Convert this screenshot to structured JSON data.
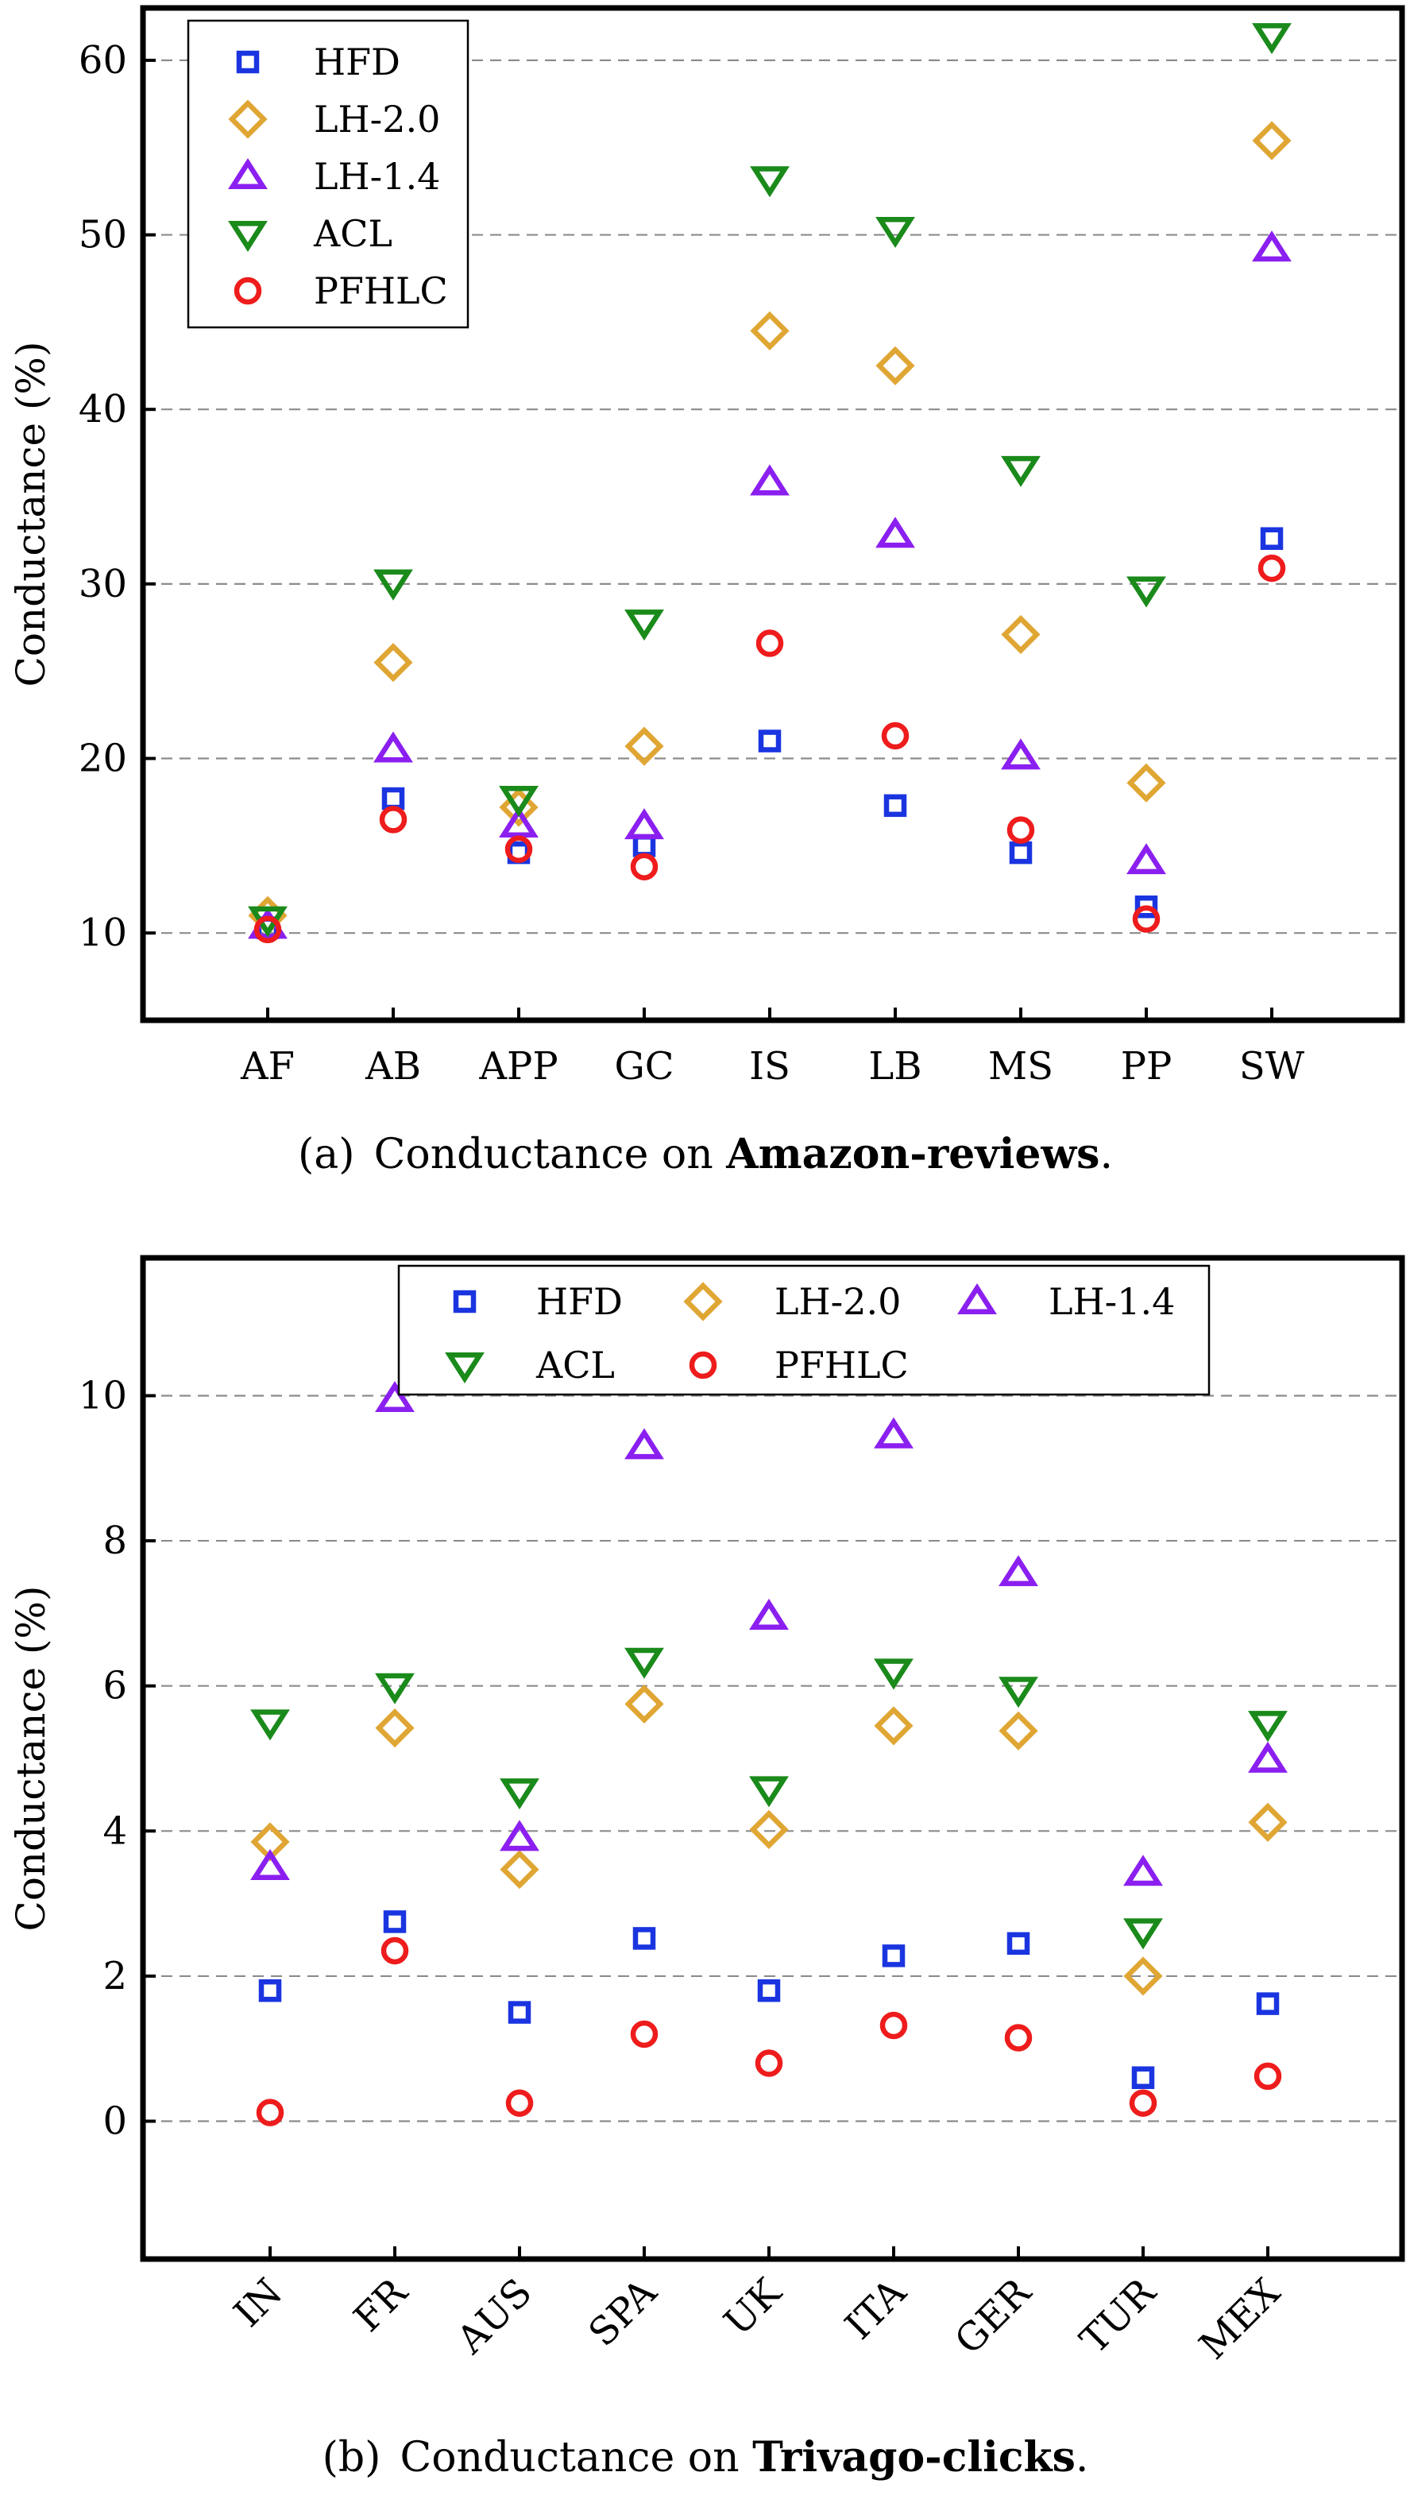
{
  "chart_data": [
    {
      "type": "scatter",
      "categories": [
        "AF",
        "AB",
        "APP",
        "GC",
        "IS",
        "LB",
        "MS",
        "PP",
        "SW"
      ],
      "ylabel": "Conductance (%)",
      "xlabel": "",
      "ylim": [
        5,
        63
      ],
      "yticks": [
        10,
        20,
        30,
        40,
        50,
        60
      ],
      "grid": "horizontal dashed",
      "legend_position": "top-left",
      "legend_columns": 1,
      "caption": {
        "prefix": "(a)",
        "text": "Conductance on ",
        "bold": "Amazon-reviews",
        "suffix": "."
      },
      "series": [
        {
          "name": "HFD",
          "marker": "square",
          "color": "#1a35e0",
          "values": [
            10.3,
            17.7,
            14.6,
            15.0,
            21.0,
            17.3,
            14.6,
            11.5,
            32.6
          ]
        },
        {
          "name": "LH-2.0",
          "marker": "diamond",
          "color": "#e0a634",
          "values": [
            11.0,
            25.5,
            17.2,
            20.7,
            44.5,
            42.5,
            27.1,
            18.6,
            55.4
          ]
        },
        {
          "name": "LH-1.4",
          "marker": "triangle-up",
          "color": "#8b1ff0",
          "values": [
            10.4,
            20.5,
            16.2,
            16.1,
            35.8,
            32.8,
            20.1,
            14.1,
            49.2
          ]
        },
        {
          "name": "ACL",
          "marker": "triangle-down",
          "color": "#1a8a1a",
          "values": [
            10.8,
            30.1,
            17.7,
            27.8,
            53.2,
            50.3,
            36.6,
            29.7,
            61.4
          ]
        },
        {
          "name": "PFHLC",
          "marker": "circle",
          "color": "#ee1c1c",
          "values": [
            10.2,
            16.5,
            14.8,
            13.8,
            26.6,
            21.3,
            15.9,
            10.8,
            30.9
          ]
        }
      ]
    },
    {
      "type": "scatter",
      "categories": [
        "IN",
        "FR",
        "AUS",
        "SPA",
        "UK",
        "ITA",
        "GER",
        "TUR",
        "MEX"
      ],
      "ylabel": "Conductance (%)",
      "xlabel": "",
      "ylim": [
        -1.9,
        11.9
      ],
      "yticks": [
        0,
        2,
        4,
        6,
        8,
        10
      ],
      "grid": "horizontal dashed",
      "legend_position": "top-center",
      "legend_columns": 3,
      "caption": {
        "prefix": "(b)",
        "text": "Conductance on ",
        "bold": "Trivago-clicks",
        "suffix": "."
      },
      "series": [
        {
          "name": "HFD",
          "marker": "square",
          "color": "#1a35e0",
          "values": [
            1.8,
            2.75,
            1.5,
            2.52,
            1.8,
            2.28,
            2.45,
            0.6,
            1.62
          ]
        },
        {
          "name": "LH-2.0",
          "marker": "diamond",
          "color": "#e0a634",
          "values": [
            3.85,
            5.42,
            3.47,
            5.75,
            4.02,
            5.45,
            5.38,
            2.0,
            4.12
          ]
        },
        {
          "name": "LH-1.4",
          "marker": "triangle-up",
          "color": "#8b1ff0",
          "values": [
            3.5,
            9.95,
            3.9,
            9.3,
            6.95,
            9.45,
            7.55,
            3.42,
            4.98
          ]
        },
        {
          "name": "ACL",
          "marker": "triangle-down",
          "color": "#1a8a1a",
          "values": [
            5.5,
            6.0,
            4.55,
            6.35,
            4.58,
            6.2,
            5.95,
            2.62,
            5.48
          ]
        },
        {
          "name": "PFHLC",
          "marker": "circle",
          "color": "#ee1c1c",
          "values": [
            0.12,
            2.35,
            0.25,
            1.2,
            0.8,
            1.32,
            1.15,
            0.25,
            0.62
          ]
        }
      ]
    }
  ]
}
